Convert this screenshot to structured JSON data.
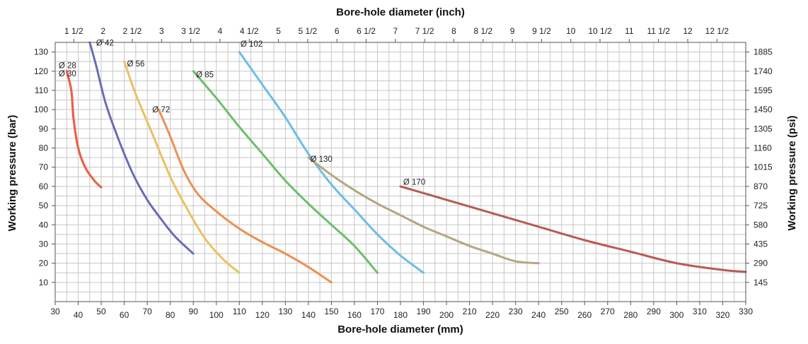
{
  "chart_data": {
    "type": "line",
    "top_axis_title": "Bore-hole diameter (inch)",
    "xlabel": "Bore-hole diameter (mm)",
    "ylabel": "Working pressure (bar)",
    "ylabel_right": "Working pressure (psi)",
    "xlim": [
      30,
      330
    ],
    "ylim": [
      0,
      135
    ],
    "grid": true,
    "x_ticks": [
      30,
      40,
      50,
      60,
      70,
      80,
      90,
      100,
      110,
      120,
      130,
      140,
      150,
      160,
      170,
      180,
      190,
      200,
      210,
      220,
      230,
      240,
      250,
      260,
      270,
      280,
      290,
      300,
      310,
      320,
      330
    ],
    "y_ticks": [
      10,
      20,
      30,
      40,
      50,
      60,
      70,
      80,
      90,
      100,
      110,
      120,
      130
    ],
    "top_ticks": [
      {
        "label": "1 1/2",
        "mm": 38.1
      },
      {
        "label": "2",
        "mm": 50.8
      },
      {
        "label": "2 1/2",
        "mm": 63.5
      },
      {
        "label": "3",
        "mm": 76.2
      },
      {
        "label": "3 1/2",
        "mm": 88.9
      },
      {
        "label": "4",
        "mm": 101.6
      },
      {
        "label": "4 1/2",
        "mm": 114.3
      },
      {
        "label": "5",
        "mm": 127.0
      },
      {
        "label": "5 1/2",
        "mm": 139.7
      },
      {
        "label": "6",
        "mm": 152.4
      },
      {
        "label": "6 1/2",
        "mm": 165.1
      },
      {
        "label": "7",
        "mm": 177.8
      },
      {
        "label": "7 1/2",
        "mm": 190.5
      },
      {
        "label": "8",
        "mm": 203.2
      },
      {
        "label": "8 1/2",
        "mm": 215.9
      },
      {
        "label": "9",
        "mm": 228.6
      },
      {
        "label": "9 1/2",
        "mm": 241.3
      },
      {
        "label": "10",
        "mm": 254.0
      },
      {
        "label": "10 1/2",
        "mm": 266.7
      },
      {
        "label": "11",
        "mm": 279.4
      },
      {
        "label": "11 1/2",
        "mm": 292.1
      },
      {
        "label": "12",
        "mm": 304.8
      },
      {
        "label": "12 1/2",
        "mm": 317.5
      }
    ],
    "right_ticks": [
      {
        "bar": 10,
        "label": "145"
      },
      {
        "bar": 20,
        "label": "290"
      },
      {
        "bar": 30,
        "label": "435"
      },
      {
        "bar": 40,
        "label": "580"
      },
      {
        "bar": 50,
        "label": "725"
      },
      {
        "bar": 60,
        "label": "870"
      },
      {
        "bar": 70,
        "label": "1015"
      },
      {
        "bar": 80,
        "label": "1160"
      },
      {
        "bar": 90,
        "label": "1305"
      },
      {
        "bar": 100,
        "label": "1450"
      },
      {
        "bar": 110,
        "label": "1595"
      },
      {
        "bar": 120,
        "label": "1740"
      },
      {
        "bar": 130,
        "label": "1885"
      }
    ],
    "series": [
      {
        "name": "Ø 28",
        "color": "#e8614a",
        "points": [
          [
            35,
            120
          ],
          [
            37,
            110
          ],
          [
            38,
            95
          ],
          [
            40,
            80
          ],
          [
            43,
            70
          ],
          [
            47,
            63
          ],
          [
            50,
            59.5
          ]
        ]
      },
      {
        "name": "Ø 30",
        "color": "#e8614a",
        "points": [
          [
            35,
            120
          ],
          [
            37,
            110
          ],
          [
            38,
            95
          ],
          [
            40,
            80
          ],
          [
            43,
            70
          ],
          [
            47,
            63
          ],
          [
            50,
            59.5
          ]
        ]
      },
      {
        "name": "Ø 42",
        "color": "#6b6bb8",
        "points": [
          [
            45,
            135
          ],
          [
            48,
            122
          ],
          [
            52,
            103
          ],
          [
            58,
            83
          ],
          [
            64,
            66
          ],
          [
            70,
            53
          ],
          [
            76,
            43
          ],
          [
            82,
            34
          ],
          [
            90,
            25
          ]
        ]
      },
      {
        "name": "Ø 56",
        "color": "#ebc15e",
        "points": [
          [
            60,
            125
          ],
          [
            65,
            108
          ],
          [
            72,
            88
          ],
          [
            80,
            65
          ],
          [
            87,
            49
          ],
          [
            95,
            33
          ],
          [
            103,
            22
          ],
          [
            110,
            15
          ]
        ]
      },
      {
        "name": "Ø 72",
        "color": "#ec8f52",
        "points": [
          [
            75,
            100
          ],
          [
            80,
            86
          ],
          [
            86,
            68
          ],
          [
            92,
            56
          ],
          [
            100,
            47
          ],
          [
            110,
            38
          ],
          [
            120,
            31
          ],
          [
            130,
            25
          ],
          [
            140,
            18
          ],
          [
            150,
            10
          ]
        ]
      },
      {
        "name": "Ø 85",
        "color": "#6cbf6a",
        "points": [
          [
            90,
            120
          ],
          [
            100,
            106
          ],
          [
            110,
            91
          ],
          [
            120,
            77
          ],
          [
            130,
            63
          ],
          [
            140,
            51
          ],
          [
            150,
            40
          ],
          [
            160,
            29
          ],
          [
            170,
            15
          ]
        ]
      },
      {
        "name": "Ø 102",
        "color": "#6bbde6",
        "points": [
          [
            110,
            130
          ],
          [
            120,
            113
          ],
          [
            130,
            96
          ],
          [
            140,
            77
          ],
          [
            150,
            61
          ],
          [
            160,
            48
          ],
          [
            170,
            35
          ],
          [
            180,
            24
          ],
          [
            190,
            15
          ]
        ]
      },
      {
        "name": "Ø 130",
        "color": "#b5a67f",
        "points": [
          [
            140,
            75
          ],
          [
            150,
            66
          ],
          [
            160,
            58
          ],
          [
            170,
            51
          ],
          [
            180,
            45
          ],
          [
            190,
            39
          ],
          [
            200,
            34
          ],
          [
            210,
            29
          ],
          [
            220,
            25
          ],
          [
            230,
            21
          ],
          [
            240,
            20
          ]
        ]
      },
      {
        "name": "Ø 170",
        "color": "#b85a55",
        "points": [
          [
            180,
            60
          ],
          [
            200,
            53
          ],
          [
            220,
            46
          ],
          [
            240,
            39
          ],
          [
            260,
            32
          ],
          [
            280,
            26
          ],
          [
            300,
            20
          ],
          [
            320,
            16.5
          ],
          [
            330,
            15.5
          ]
        ]
      }
    ],
    "series_labels": [
      {
        "text": "Ø 28",
        "x": 31.5,
        "y": 121.5
      },
      {
        "text": "Ø 30",
        "x": 31.5,
        "y": 117.3
      },
      {
        "text": "Ø 42",
        "x": 47.8,
        "y": 133.4
      },
      {
        "text": "Ø 56",
        "x": 61.2,
        "y": 122.5
      },
      {
        "text": "Ø 72",
        "x": 72.2,
        "y": 98.5
      },
      {
        "text": "Ø 85",
        "x": 91.2,
        "y": 116.8
      },
      {
        "text": "Ø 102",
        "x": 110.5,
        "y": 132.8
      },
      {
        "text": "Ø 130",
        "x": 140.8,
        "y": 72.8
      },
      {
        "text": "Ø 170",
        "x": 181.2,
        "y": 60.8
      }
    ]
  }
}
